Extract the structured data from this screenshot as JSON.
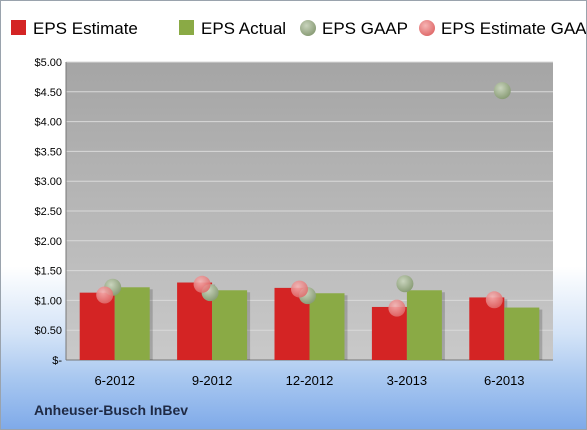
{
  "company_label": "Anheuser-Busch InBev",
  "chart_data": {
    "type": "bar",
    "categories": [
      "6-2012",
      "9-2012",
      "12-2012",
      "3-2013",
      "6-2013"
    ],
    "series": [
      {
        "name": "EPS Estimate",
        "kind": "bar",
        "color": "#d42424",
        "values": [
          1.13,
          1.3,
          1.21,
          0.89,
          1.05
        ]
      },
      {
        "name": "EPS Actual",
        "kind": "bar",
        "color": "#8aaa45",
        "values": [
          1.22,
          1.17,
          1.12,
          1.17,
          0.88
        ]
      },
      {
        "name": "EPS GAAP",
        "kind": "marker",
        "color": "#9fb08e",
        "values": [
          1.22,
          1.13,
          1.08,
          1.28,
          4.52
        ]
      },
      {
        "name": "EPS Estimate GAAP",
        "kind": "marker",
        "color": "#ec8a8a",
        "values": [
          1.09,
          1.27,
          1.19,
          0.87,
          1.01
        ]
      }
    ],
    "yticks": [
      "$-",
      "$0.50",
      "$1.00",
      "$1.50",
      "$2.00",
      "$2.50",
      "$3.00",
      "$3.50",
      "$4.00",
      "$4.50",
      "$5.00"
    ],
    "ylim": [
      0,
      5
    ],
    "grid": true,
    "legend_position": "top"
  }
}
